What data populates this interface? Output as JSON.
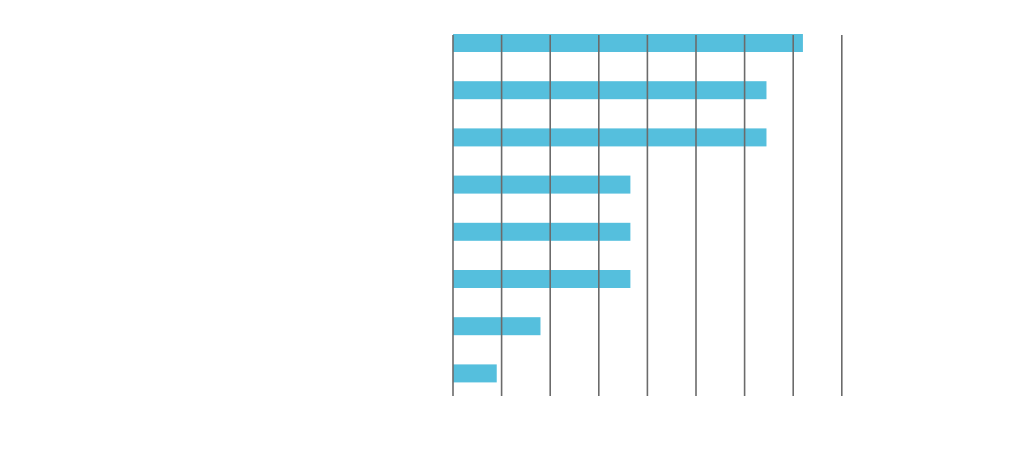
{
  "colors": {
    "bar": "#55bfdd",
    "gridline": "#6b6b6b",
    "background": "#ffffff"
  },
  "chart_data": {
    "type": "bar",
    "orientation": "horizontal",
    "title": "",
    "xlabel": "",
    "ylabel": "",
    "categories": [
      "",
      "",
      "",
      "",
      "",
      "",
      "",
      ""
    ],
    "values": [
      7.2,
      6.45,
      6.45,
      3.65,
      3.65,
      3.65,
      1.8,
      0.9
    ],
    "xlim": [
      0,
      8
    ],
    "grid": true,
    "legend": "none"
  }
}
